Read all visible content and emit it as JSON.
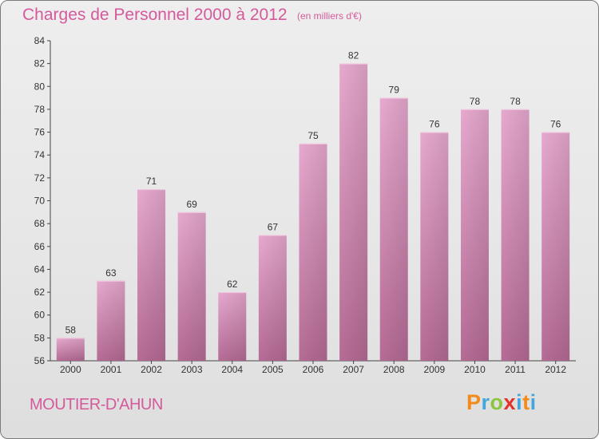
{
  "chart_data": {
    "type": "bar",
    "title": "Charges de Personnel 2000 à 2012",
    "subtitle": "(en milliers d'€)",
    "categories": [
      "2000",
      "2001",
      "2002",
      "2003",
      "2004",
      "2005",
      "2006",
      "2007",
      "2008",
      "2009",
      "2010",
      "2011",
      "2012"
    ],
    "values": [
      58,
      63,
      71,
      69,
      62,
      67,
      75,
      82,
      79,
      76,
      78,
      78,
      76
    ],
    "ylim": [
      56,
      84
    ],
    "yticks": [
      56,
      58,
      60,
      62,
      64,
      66,
      68,
      70,
      72,
      74,
      76,
      78,
      80,
      82,
      84
    ],
    "grid": false,
    "bar_color": "#d37fad"
  },
  "commune": "MOUTIER-D'AHUN",
  "logo": {
    "p": "P",
    "r": "r",
    "o": "o",
    "x": "x",
    "i": "i",
    "t": "t",
    "i2": "i"
  }
}
